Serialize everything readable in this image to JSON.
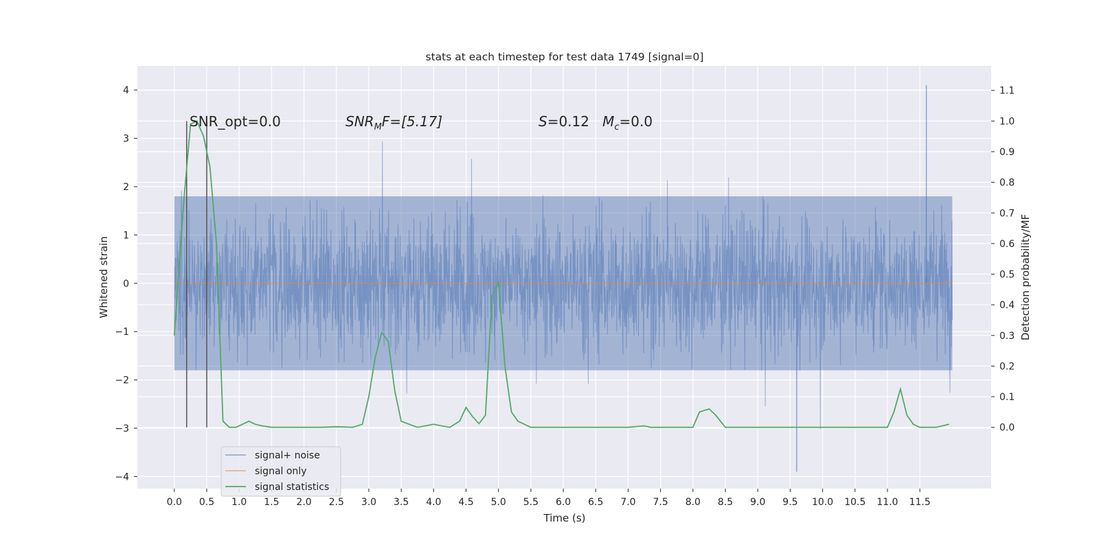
{
  "chart_data": {
    "type": "line",
    "title": "stats at each timestep for test data 1749 [signal=0]",
    "xlabel": "Time (s)",
    "ylabel": "Whitened strain",
    "ylabel_right": "Detection probability/MF",
    "xlim": [
      -0.57,
      12.6
    ],
    "ylim": [
      -4.25,
      4.5
    ],
    "ylim_right": [
      -0.2,
      1.18
    ],
    "x_ticks": [
      0.0,
      0.5,
      1.0,
      1.5,
      2.0,
      2.5,
      3.0,
      3.5,
      4.0,
      4.5,
      5.0,
      5.5,
      6.0,
      6.5,
      7.0,
      7.5,
      8.0,
      8.5,
      9.0,
      9.5,
      10.0,
      10.5,
      11.0,
      11.5
    ],
    "x_tick_labels": [
      "0.0",
      "0.5",
      "1.0",
      "1.5",
      "2.0",
      "2.5",
      "3.0",
      "3.5",
      "4.0",
      "4.5",
      "5.0",
      "5.5",
      "6.0",
      "6.5",
      "7.0",
      "7.5",
      "8.0",
      "8.5",
      "9.0",
      "9.5",
      "10.0",
      "10.5",
      "11.0",
      "11.5"
    ],
    "y_ticks": [
      4,
      3,
      2,
      1,
      0,
      -1,
      -2,
      -3,
      -4
    ],
    "y_tick_labels": [
      "4",
      "3",
      "2",
      "1",
      "0",
      "−1",
      "−2",
      "−3",
      "−4"
    ],
    "y_ticks_right": [
      1.1,
      1.0,
      0.9,
      0.8,
      0.7,
      0.6,
      0.5,
      0.4,
      0.3,
      0.2,
      0.1,
      0.0
    ],
    "y_tick_labels_right": [
      "1.1",
      "1.0",
      "0.9",
      "0.8",
      "0.7",
      "0.6",
      "0.5",
      "0.4",
      "0.3",
      "0.2",
      "0.1",
      "0.0"
    ],
    "grid": true,
    "legend_position": "lower-left",
    "series": [
      {
        "name": "signal+ noise",
        "color": "#4c72b0",
        "description_type": "noise",
        "x_range": [
          0.0,
          12.0
        ],
        "envelope_upper": 1.8,
        "envelope_lower": -1.8,
        "extreme_max": 4.1,
        "extreme_max_x": 11.6,
        "extreme_min": -3.9,
        "extreme_min_x": 9.6
      },
      {
        "name": "signal only",
        "color": "#dd8452",
        "x": [
          0.0,
          12.0
        ],
        "y": [
          0.0,
          0.0
        ]
      },
      {
        "name": "signal statistics",
        "color": "#55a868",
        "axis": "right",
        "x": [
          0.0,
          0.15,
          0.25,
          0.35,
          0.45,
          0.55,
          0.65,
          0.75,
          0.85,
          0.95,
          1.05,
          1.15,
          1.25,
          1.35,
          1.5,
          1.75,
          2.0,
          2.25,
          2.5,
          2.75,
          2.9,
          3.0,
          3.1,
          3.2,
          3.3,
          3.4,
          3.5,
          3.75,
          4.0,
          4.25,
          4.4,
          4.5,
          4.6,
          4.7,
          4.8,
          4.9,
          5.0,
          5.1,
          5.2,
          5.3,
          5.5,
          5.75,
          6.0,
          6.5,
          7.0,
          7.25,
          7.35,
          7.5,
          7.75,
          8.0,
          8.1,
          8.25,
          8.35,
          8.5,
          8.75,
          9.0,
          9.5,
          10.0,
          10.5,
          11.0,
          11.1,
          11.2,
          11.3,
          11.4,
          11.5,
          11.75,
          11.95
        ],
        "y": [
          0.3,
          0.75,
          0.99,
          1.0,
          0.95,
          0.85,
          0.6,
          0.02,
          0.0,
          0.0,
          0.01,
          0.02,
          0.01,
          0.005,
          0.0,
          0.0,
          0.0,
          0.0,
          0.002,
          0.0,
          0.01,
          0.1,
          0.23,
          0.31,
          0.28,
          0.12,
          0.02,
          0.0,
          0.01,
          0.0,
          0.02,
          0.065,
          0.035,
          0.012,
          0.04,
          0.43,
          0.475,
          0.2,
          0.05,
          0.02,
          0.0,
          0.0,
          0.0,
          0.0,
          0.0,
          0.005,
          0.0,
          0.0,
          0.0,
          0.0,
          0.05,
          0.06,
          0.04,
          0.0,
          0.0,
          0.0,
          0.0,
          0.0,
          0.0,
          0.0,
          0.05,
          0.125,
          0.04,
          0.01,
          0.0,
          0.0,
          0.01
        ]
      }
    ],
    "vertical_markers_x": [
      0.19,
      0.5
    ],
    "annotations": [
      {
        "id": "snr-opt",
        "text": "SNR_opt=0.0"
      },
      {
        "id": "snr-mf",
        "text": "SNR",
        "sub": "M",
        "rest": "F=[5.17]"
      },
      {
        "id": "s-mc",
        "text": "S",
        "rest1": "=0.12   ",
        "text2": "M",
        "sub2": "c",
        "rest2": "=0.0"
      }
    ]
  },
  "colors": {
    "plot_background": "#eaeaf2",
    "grid": "#ffffff",
    "marker_line": "#555555"
  }
}
